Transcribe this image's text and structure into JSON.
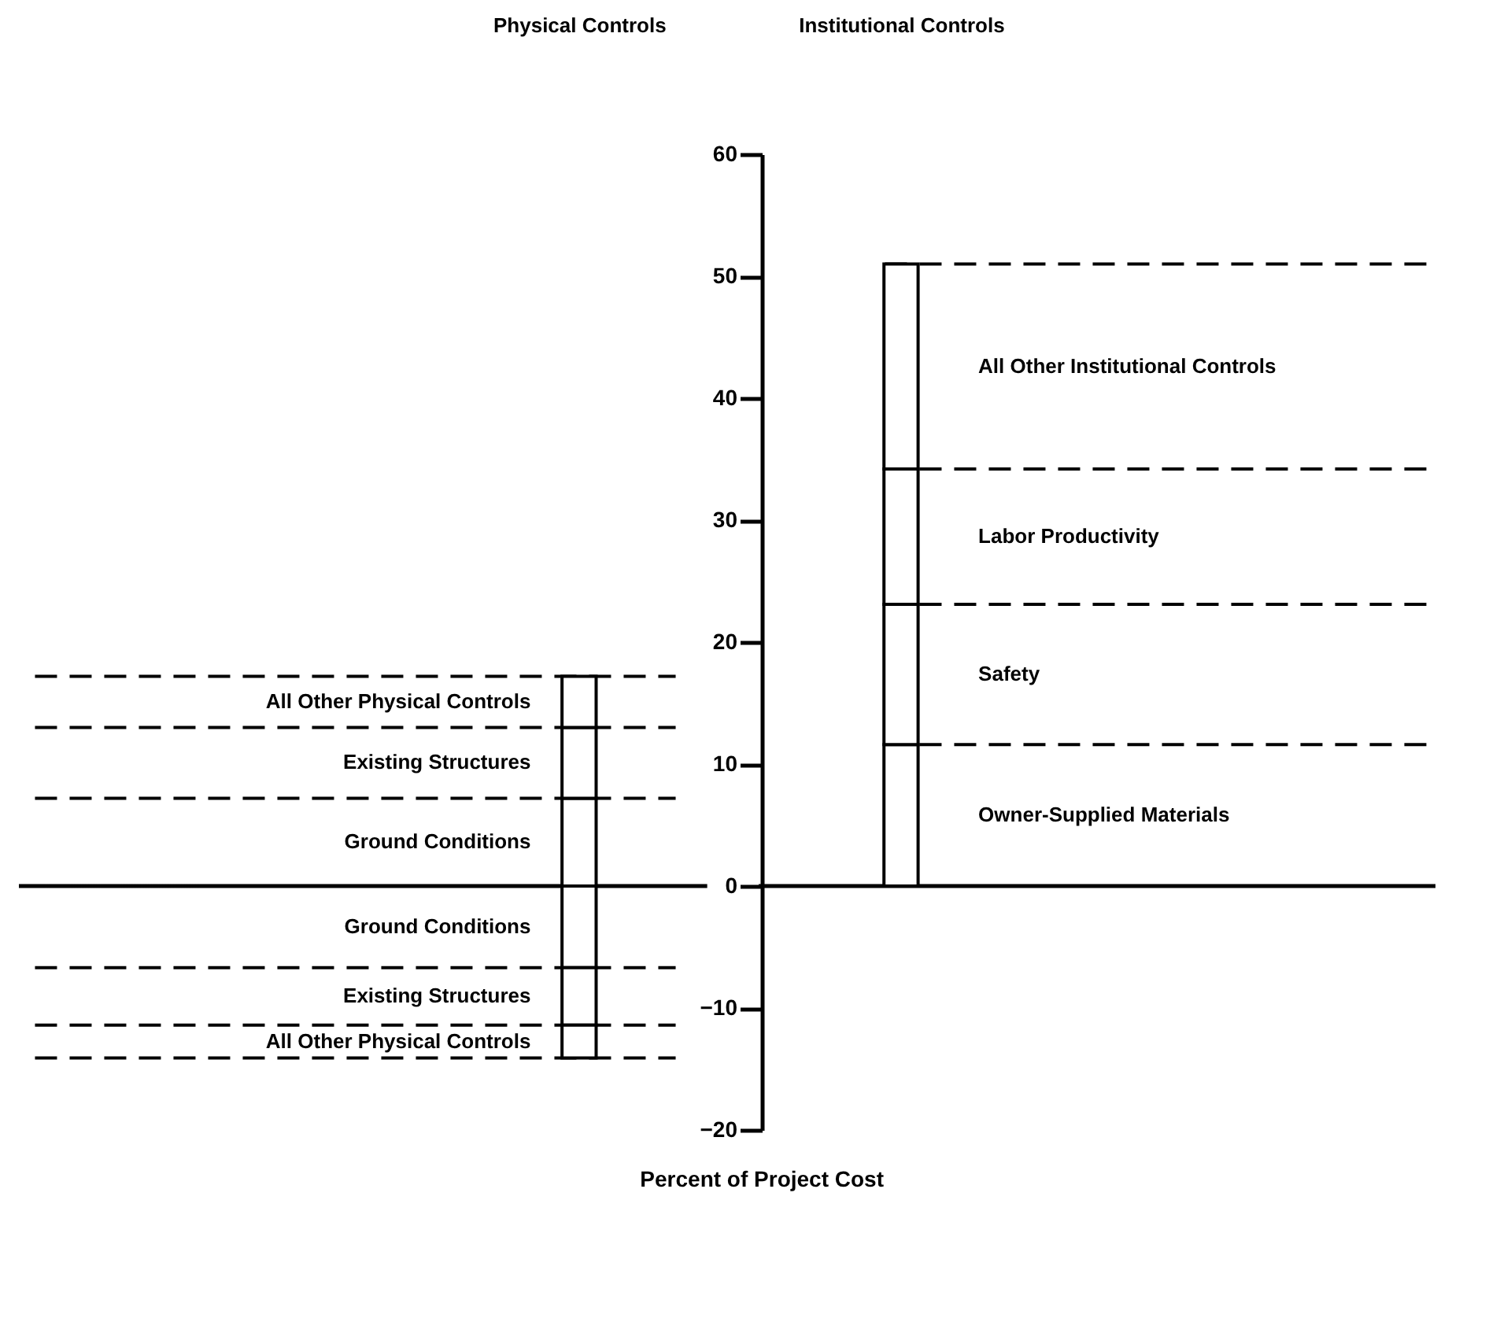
{
  "chart_data": {
    "type": "bar",
    "stacked": true,
    "categories": [
      "Physical Controls",
      "Institutional Controls"
    ],
    "series": [
      {
        "name": "Ground Conditions",
        "color": "#ffffff",
        "values": [
          7.2,
          null
        ]
      },
      {
        "name": "Existing Structures",
        "color": "#ffffff",
        "values": [
          5.8,
          null
        ]
      },
      {
        "name": "All Other Physical Controls",
        "color": "#ffffff",
        "values": [
          4.2,
          null
        ]
      },
      {
        "name": "Ground Conditions",
        "color": "#ffffff",
        "values": [
          -6.7,
          null
        ]
      },
      {
        "name": "Existing Structures",
        "color": "#ffffff",
        "values": [
          -4.7,
          null
        ]
      },
      {
        "name": "All Other Physical Controls",
        "color": "#ffffff",
        "values": [
          -2.7,
          null
        ]
      },
      {
        "name": "Owner-Supplied Materials",
        "color": "#ffffff",
        "values": [
          null,
          11.6
        ]
      },
      {
        "name": "Safety",
        "color": "#ffffff",
        "values": [
          null,
          11.5
        ]
      },
      {
        "name": "Labor Productivity",
        "color": "#ffffff",
        "values": [
          null,
          11.1
        ]
      },
      {
        "name": "All Other Institutional Controls",
        "color": "#ffffff",
        "values": [
          null,
          16.8
        ]
      }
    ],
    "ylim": [
      -20,
      60
    ],
    "yticks": [
      -20,
      -10,
      0,
      10,
      20,
      30,
      40,
      50,
      60
    ],
    "xlabel": "Percent of Project Cost",
    "ref_lines": [
      {
        "axis": "y",
        "value": 0
      }
    ],
    "legend": false,
    "grid": false
  }
}
